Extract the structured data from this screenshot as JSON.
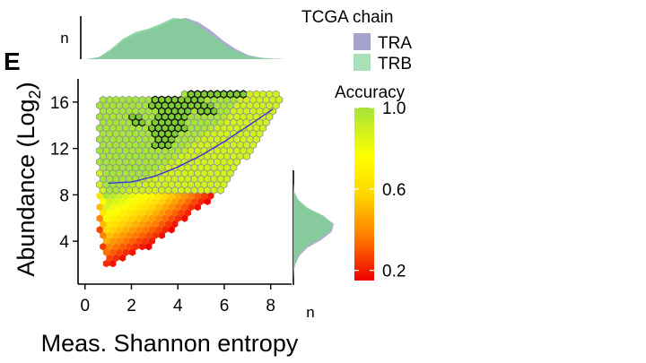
{
  "panel_label": "E",
  "chart_data": {
    "type": "hexbin-scatter",
    "xlabel": "Meas. Shannon entropy",
    "ylabel_main": "Abundance (Log",
    "ylabel_sub": "2",
    "ylabel_close": ")",
    "xlim": [
      -0.3,
      8.9
    ],
    "ylim": [
      0.3,
      18
    ],
    "xticks": [
      0,
      2,
      4,
      6,
      8
    ],
    "yticks": [
      4,
      8,
      12,
      16
    ],
    "xtick_labels": [
      "0",
      "2",
      "4",
      "6",
      "8"
    ],
    "ytick_labels": [
      "4",
      "8",
      "12",
      "16"
    ],
    "marginal_axis_label": "n",
    "trend_line": {
      "color": "#3a3ad6",
      "points": [
        [
          1.0,
          9.0
        ],
        [
          2.0,
          9.1
        ],
        [
          3.0,
          9.6
        ],
        [
          4.0,
          10.4
        ],
        [
          5.0,
          11.4
        ],
        [
          6.0,
          12.6
        ],
        [
          7.0,
          13.9
        ],
        [
          8.1,
          15.4
        ]
      ]
    },
    "region": {
      "upper_y": 16.2,
      "lower_boundary": [
        [
          0.5,
          5.5
        ],
        [
          0.9,
          1.5
        ],
        [
          3.0,
          3.8
        ],
        [
          6.0,
          8.5
        ],
        [
          8.4,
          15.4
        ]
      ]
    },
    "high_accuracy_cluster": {
      "points": [
        [
          2.2,
          14.6
        ],
        [
          3.2,
          15.8
        ],
        [
          3.5,
          15.0
        ],
        [
          3.8,
          14.2
        ],
        [
          3.6,
          13.3
        ],
        [
          3.3,
          12.6
        ],
        [
          4.5,
          16.2
        ],
        [
          5.0,
          16.6
        ],
        [
          5.5,
          16.9
        ],
        [
          6.0,
          17.0
        ],
        [
          6.5,
          16.8
        ],
        [
          4.2,
          15.2
        ],
        [
          4.8,
          15.9
        ],
        [
          5.3,
          15.5
        ],
        [
          4.0,
          13.8
        ],
        [
          3.0,
          13.8
        ],
        [
          3.9,
          16.1
        ],
        [
          3.4,
          14.4
        ]
      ]
    },
    "marginal_top": {
      "series": [
        {
          "name": "TRA",
          "color": "#a3a3cc",
          "y": [
            0,
            0.05,
            0.2,
            0.45,
            0.6,
            0.7,
            0.8,
            0.95,
            1.0,
            0.9,
            0.7,
            0.45,
            0.25,
            0.1,
            0.04,
            0.01,
            0
          ]
        },
        {
          "name": "TRB",
          "color": "#7fcf95",
          "y": [
            0,
            0.04,
            0.25,
            0.5,
            0.66,
            0.74,
            0.86,
            1.0,
            0.97,
            0.82,
            0.6,
            0.38,
            0.2,
            0.08,
            0.03,
            0.01,
            0
          ]
        }
      ]
    },
    "marginal_right": {
      "series": [
        {
          "name": "TRA",
          "color": "#a3a3cc",
          "x": [
            0,
            0.02,
            0.1,
            0.3,
            0.7,
            1.0,
            0.95,
            0.7,
            0.35,
            0.15,
            0.05,
            0.01,
            0
          ]
        },
        {
          "name": "TRB",
          "color": "#7fcf95",
          "x": [
            0,
            0.02,
            0.12,
            0.35,
            0.75,
            0.98,
            0.9,
            0.62,
            0.3,
            0.12,
            0.04,
            0.01,
            0
          ]
        }
      ]
    },
    "legend_chain": {
      "title": "TCGA chain",
      "items": [
        {
          "label": "TRA",
          "color": "#a3a3cc"
        },
        {
          "label": "TRB",
          "color": "#a8e0b8"
        }
      ]
    },
    "legend_accuracy": {
      "title": "Accuracy",
      "labels": [
        "1.0",
        "0.6",
        "0.2"
      ],
      "values": [
        1.0,
        0.6,
        0.2
      ],
      "range": [
        0.15,
        1.0
      ]
    }
  }
}
